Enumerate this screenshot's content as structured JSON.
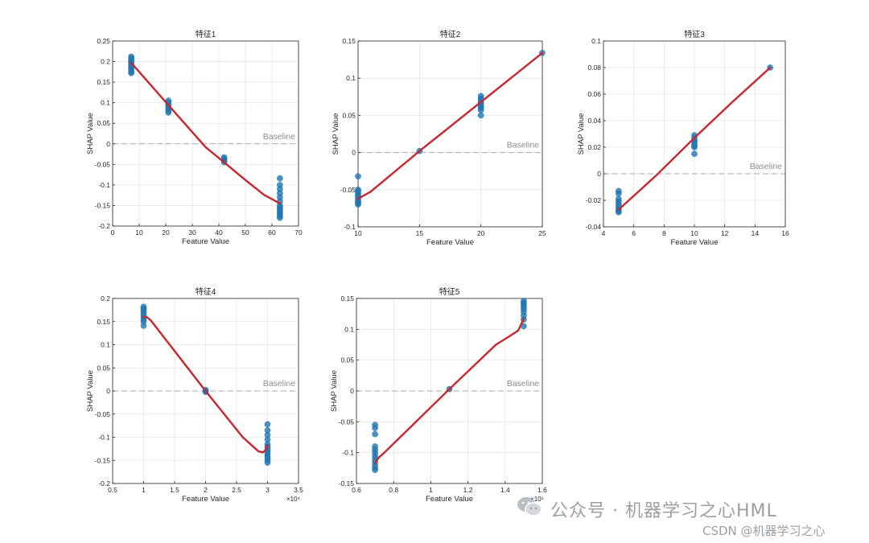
{
  "watermark": {
    "line1": "公众号 · 机器学习之心HML",
    "line2": "CSDN @机器学习之心"
  },
  "colors": {
    "points": "#1f77b4",
    "fit_line": "#c8262c",
    "baseline": "#aaaaaa",
    "grid": "#e6e6e6"
  },
  "chart_data": [
    {
      "type": "scatter",
      "title": "特征1",
      "xlabel": "Feature Value",
      "ylabel": "SHAP Value",
      "xlim": [
        0,
        70
      ],
      "ylim": [
        -0.2,
        0.25
      ],
      "xticks": [
        0,
        10,
        20,
        30,
        40,
        50,
        60,
        70
      ],
      "xtick_labels": [
        "0",
        "10",
        "20",
        "30",
        "40",
        "50",
        "60",
        "70"
      ],
      "yticks": [
        -0.2,
        -0.15,
        -0.1,
        -0.05,
        0,
        0.05,
        0.1,
        0.15,
        0.2,
        0.25
      ],
      "ytick_labels": [
        "-0.2",
        "-0.15",
        "-0.1",
        "-0.05",
        "0",
        "0.05",
        "0.1",
        "0.15",
        "0.2",
        "0.25"
      ],
      "x_exponent": "",
      "baseline": {
        "y": 0,
        "label": "Baseline"
      },
      "points": [
        [
          7,
          0.212
        ],
        [
          7,
          0.208
        ],
        [
          7,
          0.204
        ],
        [
          7,
          0.2
        ],
        [
          7,
          0.195
        ],
        [
          7,
          0.19
        ],
        [
          7,
          0.185
        ],
        [
          7,
          0.18
        ],
        [
          7,
          0.175
        ],
        [
          7,
          0.172
        ],
        [
          21,
          0.105
        ],
        [
          21,
          0.1
        ],
        [
          21,
          0.095
        ],
        [
          21,
          0.09
        ],
        [
          21,
          0.085
        ],
        [
          21,
          0.08
        ],
        [
          21,
          0.076
        ],
        [
          42,
          -0.033
        ],
        [
          42,
          -0.037
        ],
        [
          42,
          -0.041
        ],
        [
          42,
          -0.045
        ],
        [
          63,
          -0.084
        ],
        [
          63,
          -0.1
        ],
        [
          63,
          -0.11
        ],
        [
          63,
          -0.12
        ],
        [
          63,
          -0.13
        ],
        [
          63,
          -0.14
        ],
        [
          63,
          -0.15
        ],
        [
          63,
          -0.155
        ],
        [
          63,
          -0.16
        ],
        [
          63,
          -0.165
        ],
        [
          63,
          -0.17
        ],
        [
          63,
          -0.175
        ],
        [
          63,
          -0.18
        ]
      ],
      "fit_line": [
        [
          7,
          0.197
        ],
        [
          21,
          0.094
        ],
        [
          35,
          -0.008
        ],
        [
          42,
          -0.045
        ],
        [
          50,
          -0.088
        ],
        [
          57,
          -0.124
        ],
        [
          63,
          -0.145
        ]
      ]
    },
    {
      "type": "scatter",
      "title": "特征2",
      "xlabel": "Feature Value",
      "ylabel": "SHAP Value",
      "xlim": [
        10,
        25
      ],
      "ylim": [
        -0.1,
        0.15
      ],
      "xticks": [
        10,
        15,
        20,
        25
      ],
      "xtick_labels": [
        "10",
        "15",
        "20",
        "25"
      ],
      "yticks": [
        -0.1,
        -0.05,
        0,
        0.05,
        0.1,
        0.15
      ],
      "ytick_labels": [
        "-0.1",
        "-0.05",
        "0",
        "0.05",
        "0.1",
        "0.15"
      ],
      "x_exponent": "",
      "baseline": {
        "y": 0,
        "label": "Baseline"
      },
      "points": [
        [
          10,
          -0.032
        ],
        [
          10,
          -0.05
        ],
        [
          10,
          -0.052
        ],
        [
          10,
          -0.055
        ],
        [
          10,
          -0.058
        ],
        [
          10,
          -0.06
        ],
        [
          10,
          -0.063
        ],
        [
          10,
          -0.066
        ],
        [
          10,
          -0.068
        ],
        [
          10,
          -0.07
        ],
        [
          15,
          0.002
        ],
        [
          20,
          0.076
        ],
        [
          20,
          0.073
        ],
        [
          20,
          0.07
        ],
        [
          20,
          0.067
        ],
        [
          20,
          0.065
        ],
        [
          20,
          0.062
        ],
        [
          20,
          0.06
        ],
        [
          20,
          0.057
        ],
        [
          20,
          0.05
        ],
        [
          25,
          0.134
        ]
      ],
      "fit_line": [
        [
          10,
          -0.062
        ],
        [
          11,
          -0.053
        ],
        [
          15,
          0.002
        ],
        [
          20,
          0.068
        ],
        [
          25,
          0.134
        ]
      ]
    },
    {
      "type": "scatter",
      "title": "特征3",
      "xlabel": "Feature Value",
      "ylabel": "SHAP Value",
      "xlim": [
        4,
        16
      ],
      "ylim": [
        -0.04,
        0.1
      ],
      "xticks": [
        4,
        6,
        8,
        10,
        12,
        14,
        16
      ],
      "xtick_labels": [
        "4",
        "6",
        "8",
        "10",
        "12",
        "14",
        "16"
      ],
      "yticks": [
        -0.04,
        -0.02,
        0,
        0.02,
        0.04,
        0.06,
        0.08,
        0.1
      ],
      "ytick_labels": [
        "-0.04",
        "-0.02",
        "0",
        "0.02",
        "0.04",
        "0.06",
        "0.08",
        "0.1"
      ],
      "x_exponent": "",
      "baseline": {
        "y": 0,
        "label": "Baseline"
      },
      "points": [
        [
          5,
          -0.013
        ],
        [
          5,
          -0.015
        ],
        [
          5,
          -0.019
        ],
        [
          5,
          -0.021
        ],
        [
          5,
          -0.023
        ],
        [
          5,
          -0.025
        ],
        [
          5,
          -0.027
        ],
        [
          5,
          -0.028
        ],
        [
          5,
          -0.029
        ],
        [
          10,
          0.029
        ],
        [
          10,
          0.027
        ],
        [
          10,
          0.025
        ],
        [
          10,
          0.024
        ],
        [
          10,
          0.022
        ],
        [
          10,
          0.021
        ],
        [
          10,
          0.02
        ],
        [
          10,
          0.015
        ],
        [
          15,
          0.08
        ]
      ],
      "fit_line": [
        [
          5,
          -0.027
        ],
        [
          7.5,
          -0.001
        ],
        [
          10,
          0.027
        ],
        [
          12.5,
          0.054
        ],
        [
          15,
          0.08
        ]
      ]
    },
    {
      "type": "scatter",
      "title": "特征4",
      "xlabel": "Feature Value",
      "ylabel": "SHAP Value",
      "xlim": [
        0.5,
        3.5
      ],
      "ylim": [
        -0.2,
        0.2
      ],
      "xticks": [
        0.5,
        1,
        1.5,
        2,
        2.5,
        3,
        3.5
      ],
      "xtick_labels": [
        "0.5",
        "1",
        "1.5",
        "2",
        "2.5",
        "3",
        "3.5"
      ],
      "yticks": [
        -0.2,
        -0.15,
        -0.1,
        -0.05,
        0,
        0.05,
        0.1,
        0.15,
        0.2
      ],
      "ytick_labels": [
        "-0.2",
        "-0.15",
        "-0.1",
        "-0.05",
        "0",
        "0.05",
        "0.1",
        "0.15",
        "0.2"
      ],
      "x_exponent": "×10⁴",
      "baseline": {
        "y": 0,
        "label": "Baseline"
      },
      "points": [
        [
          1,
          0.182
        ],
        [
          1,
          0.178
        ],
        [
          1,
          0.175
        ],
        [
          1,
          0.17
        ],
        [
          1,
          0.165
        ],
        [
          1,
          0.16
        ],
        [
          1,
          0.155
        ],
        [
          1,
          0.15
        ],
        [
          1,
          0.141
        ],
        [
          2,
          0.002
        ],
        [
          2,
          0.0
        ],
        [
          2,
          -0.002
        ],
        [
          3,
          -0.072
        ],
        [
          3,
          -0.085
        ],
        [
          3,
          -0.095
        ],
        [
          3,
          -0.105
        ],
        [
          3,
          -0.115
        ],
        [
          3,
          -0.12
        ],
        [
          3,
          -0.125
        ],
        [
          3,
          -0.13
        ],
        [
          3,
          -0.135
        ],
        [
          3,
          -0.14
        ],
        [
          3,
          -0.145
        ],
        [
          3,
          -0.15
        ],
        [
          3,
          -0.155
        ]
      ],
      "fit_line": [
        [
          1.0,
          0.16
        ],
        [
          1.05,
          0.16
        ],
        [
          1.12,
          0.152
        ],
        [
          2,
          0.0
        ],
        [
          2.6,
          -0.1
        ],
        [
          2.85,
          -0.13
        ],
        [
          2.92,
          -0.133
        ],
        [
          2.97,
          -0.128
        ],
        [
          3.0,
          -0.118
        ]
      ]
    },
    {
      "type": "scatter",
      "title": "特征5",
      "xlabel": "Feature Value",
      "ylabel": "SHAP Value",
      "xlim": [
        0.6,
        1.6
      ],
      "ylim": [
        -0.15,
        0.15
      ],
      "xticks": [
        0.6,
        0.8,
        1.0,
        1.2,
        1.4,
        1.6
      ],
      "xtick_labels": [
        "0.6",
        "0.8",
        "1",
        "1.2",
        "1.4",
        "1.6"
      ],
      "yticks": [
        -0.15,
        -0.1,
        -0.05,
        0,
        0.05,
        0.1,
        0.15
      ],
      "ytick_labels": [
        "-0.15",
        "-0.1",
        "-0.05",
        "0",
        "0.05",
        "0.1",
        "0.15"
      ],
      "x_exponent": "×10⁵",
      "baseline": {
        "y": 0,
        "label": "Baseline"
      },
      "points": [
        [
          0.7,
          -0.055
        ],
        [
          0.7,
          -0.06
        ],
        [
          0.7,
          -0.07
        ],
        [
          0.7,
          -0.09
        ],
        [
          0.7,
          -0.095
        ],
        [
          0.7,
          -0.1
        ],
        [
          0.7,
          -0.105
        ],
        [
          0.7,
          -0.11
        ],
        [
          0.7,
          -0.115
        ],
        [
          0.7,
          -0.12
        ],
        [
          0.7,
          -0.125
        ],
        [
          0.7,
          -0.128
        ],
        [
          1.1,
          0.003
        ],
        [
          1.5,
          0.146
        ],
        [
          1.5,
          0.143
        ],
        [
          1.5,
          0.14
        ],
        [
          1.5,
          0.137
        ],
        [
          1.5,
          0.133
        ],
        [
          1.5,
          0.128
        ],
        [
          1.5,
          0.122
        ],
        [
          1.5,
          0.116
        ],
        [
          1.5,
          0.105
        ]
      ],
      "fit_line": [
        [
          0.7,
          -0.117
        ],
        [
          0.72,
          -0.108
        ],
        [
          0.75,
          -0.1
        ],
        [
          1.1,
          0.003
        ],
        [
          1.35,
          0.075
        ],
        [
          1.42,
          0.088
        ],
        [
          1.47,
          0.098
        ],
        [
          1.5,
          0.117
        ]
      ]
    }
  ]
}
